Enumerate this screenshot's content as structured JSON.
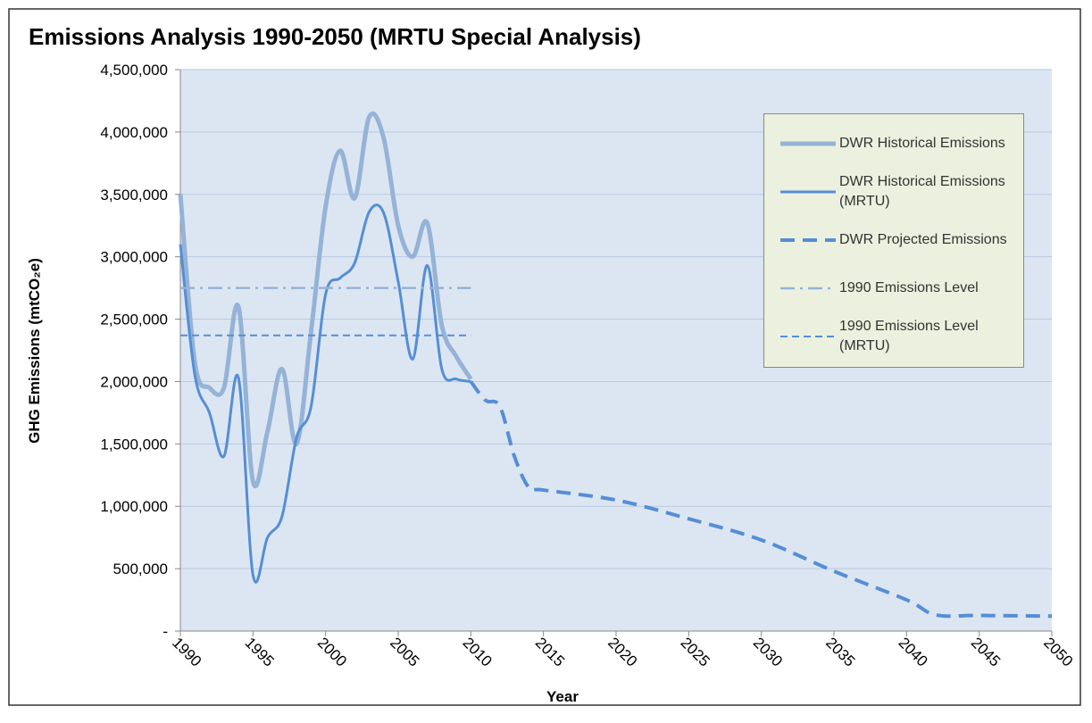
{
  "chart_data": {
    "type": "line",
    "title": "Emissions  Analysis 1990-2050 (MRTU Special Analysis)",
    "xlabel": "Year",
    "ylabel": "GHG Emissions (mtCO₂e)",
    "xlim": [
      1990,
      2050
    ],
    "xticks": [
      1990,
      1995,
      2000,
      2005,
      2010,
      2015,
      2020,
      2025,
      2030,
      2035,
      2040,
      2045,
      2050
    ],
    "ylim": [
      0,
      4500000
    ],
    "yticks": [
      {
        "value": 0,
        "label": "-"
      },
      {
        "value": 500000,
        "label": "500,000"
      },
      {
        "value": 1000000,
        "label": "1,000,000"
      },
      {
        "value": 1500000,
        "label": "1,500,000"
      },
      {
        "value": 2000000,
        "label": "2,000,000"
      },
      {
        "value": 2500000,
        "label": "2,500,000"
      },
      {
        "value": 3000000,
        "label": "3,000,000"
      },
      {
        "value": 3500000,
        "label": "3,500,000"
      },
      {
        "value": 4000000,
        "label": "4,000,000"
      },
      {
        "value": 4500000,
        "label": "4,500,000"
      }
    ],
    "grid": true,
    "smooth": true,
    "legend": "upper right",
    "series": [
      {
        "name": "DWR Historical Emissions",
        "color": "#95b3d7",
        "width": 5,
        "line_style": "solid",
        "x": [
          1990,
          1991,
          1992,
          1993,
          1994,
          1995,
          1996,
          1997,
          1998,
          1999,
          2000,
          2001,
          2002,
          2003,
          2004,
          2005,
          2006,
          2007,
          2008,
          2009,
          2010
        ],
        "values": [
          3500000,
          2150000,
          1950000,
          1950000,
          2600000,
          1200000,
          1600000,
          2100000,
          1500000,
          2400000,
          3400000,
          3850000,
          3470000,
          4120000,
          3950000,
          3250000,
          3000000,
          3270000,
          2450000,
          2200000,
          2020000
        ]
      },
      {
        "name": "DWR Historical Emissions (MRTU)",
        "color": "#558ed5",
        "width": 3,
        "line_style": "solid",
        "x": [
          1990,
          1991,
          1992,
          1993,
          1994,
          1995,
          1996,
          1997,
          1998,
          1999,
          2000,
          2001,
          2002,
          2003,
          2004,
          2005,
          2006,
          2007,
          2008,
          2009,
          2010
        ],
        "values": [
          3100000,
          2050000,
          1750000,
          1400000,
          2030000,
          450000,
          750000,
          920000,
          1550000,
          1800000,
          2700000,
          2830000,
          2950000,
          3360000,
          3350000,
          2800000,
          2180000,
          2930000,
          2100000,
          2020000,
          2000000
        ]
      },
      {
        "name": "DWR Projected Emissions",
        "color": "#558ed5",
        "width": 4,
        "line_style": "dashed",
        "x": [
          2010,
          2011,
          2012,
          2013,
          2014,
          2015,
          2020,
          2025,
          2030,
          2035,
          2040,
          2042,
          2045,
          2050
        ],
        "values": [
          2000000,
          1850000,
          1800000,
          1400000,
          1150000,
          1130000,
          1050000,
          900000,
          730000,
          480000,
          250000,
          130000,
          125000,
          120000
        ]
      },
      {
        "name": "1990 Emissions Level",
        "color": "#95b3d7",
        "width": 2.5,
        "line_style": "dash-dot",
        "x": [
          1990,
          2010
        ],
        "values": [
          2750000,
          2750000
        ]
      },
      {
        "name": "1990 Emissions Level (MRTU)",
        "color": "#558ed5",
        "width": 2,
        "line_style": "short-dash",
        "x": [
          1990,
          2010
        ],
        "values": [
          2370000,
          2370000
        ]
      }
    ]
  }
}
